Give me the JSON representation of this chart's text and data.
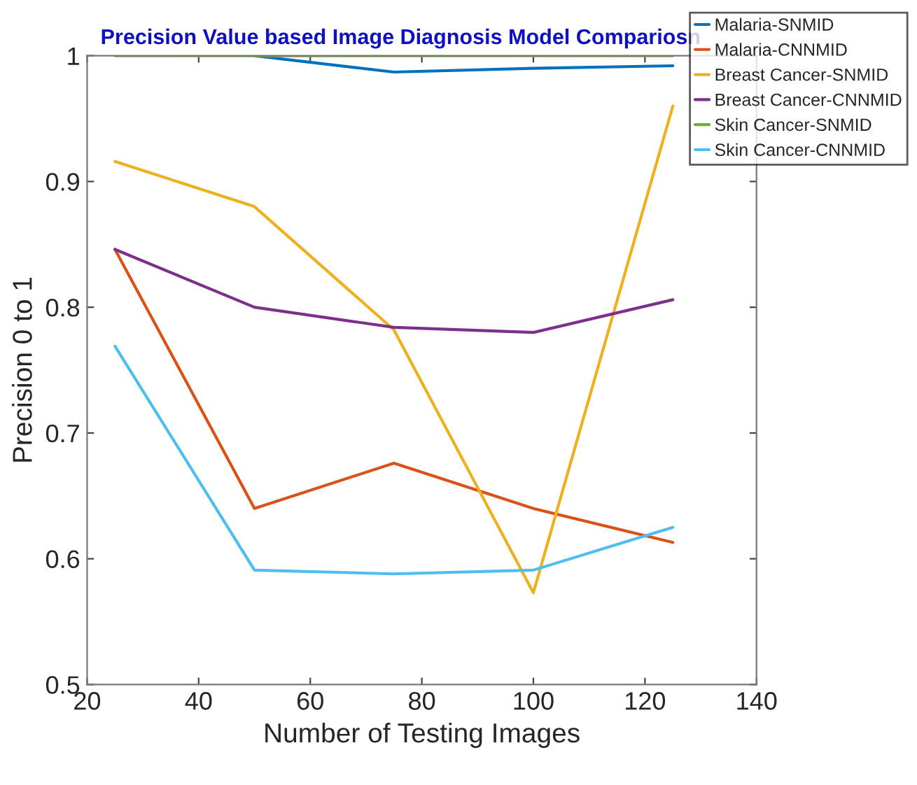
{
  "chart_data": {
    "type": "line",
    "title": "Precision Value based Image Diagnosis Model Compariosn",
    "xlabel": "Number of Testing Images",
    "ylabel": "Precision 0 to 1",
    "x": [
      25,
      50,
      75,
      100,
      125
    ],
    "series": [
      {
        "name": "Malaria-SNMID",
        "color": "#0072bd",
        "values": [
          null,
          1.0,
          0.987,
          0.99,
          0.992
        ]
      },
      {
        "name": "Malaria-CNNMID",
        "color": "#d95319",
        "values": [
          0.846,
          0.64,
          0.676,
          0.64,
          0.613
        ]
      },
      {
        "name": "Breast Cancer-SNMID",
        "color": "#edb120",
        "values": [
          0.916,
          0.88,
          0.782,
          0.573,
          0.96
        ]
      },
      {
        "name": "Breast Cancer-CNNMID",
        "color": "#7e2f8e",
        "values": [
          0.846,
          0.8,
          0.784,
          0.78,
          0.806
        ]
      },
      {
        "name": "Skin Cancer-SNMID",
        "color": "#77ac30",
        "values": [
          1.0,
          1.0,
          1.0,
          1.0,
          1.0
        ]
      },
      {
        "name": "Skin Cancer-CNNMID",
        "color": "#4dbeee",
        "values": [
          0.769,
          0.591,
          0.588,
          0.591,
          0.625
        ]
      }
    ],
    "xlim": [
      20,
      140
    ],
    "xticks": [
      20,
      40,
      60,
      80,
      100,
      120,
      140
    ],
    "ylim": [
      0.5,
      1
    ],
    "yticks": [
      0.5,
      0.6,
      0.7,
      0.8,
      0.9,
      1
    ],
    "grid": false,
    "legend": "top right",
    "marker": "none",
    "line_style": "solid"
  }
}
